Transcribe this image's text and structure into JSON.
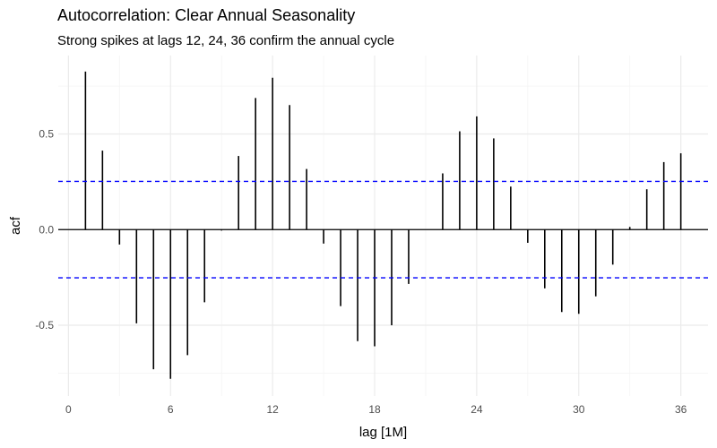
{
  "chart_data": {
    "type": "bar",
    "title": "Autocorrelation: Clear Annual Seasonality",
    "subtitle": "Strong spikes at lags 12, 24, 36 confirm the annual cycle",
    "xlabel": "lag [1M]",
    "ylabel": "acf",
    "xlim": [
      -0.6,
      37.6
    ],
    "ylim": [
      -0.87,
      0.91
    ],
    "xticks": [
      0,
      6,
      12,
      18,
      24,
      30,
      36
    ],
    "yticks": [
      -0.5,
      0.0,
      0.5
    ],
    "ytick_labels": [
      "-0.5",
      "0.0",
      "0.5"
    ],
    "grid": true,
    "confidence_bound": 0.252,
    "colors": {
      "spike": "#000000",
      "bound": "#0000ff",
      "grid": "#ebebeb"
    },
    "lags": [
      1,
      2,
      3,
      4,
      5,
      6,
      7,
      8,
      9,
      10,
      11,
      12,
      13,
      14,
      15,
      16,
      17,
      18,
      19,
      20,
      21,
      22,
      23,
      24,
      25,
      26,
      27,
      28,
      29,
      30,
      31,
      32,
      33,
      34,
      35,
      36
    ],
    "values": [
      0.826,
      0.413,
      -0.078,
      -0.49,
      -0.73,
      -0.78,
      -0.656,
      -0.38,
      -0.005,
      0.385,
      0.688,
      0.794,
      0.651,
      0.317,
      -0.073,
      -0.4,
      -0.583,
      -0.61,
      -0.5,
      -0.284,
      0.0,
      0.294,
      0.514,
      0.592,
      0.477,
      0.225,
      -0.069,
      -0.307,
      -0.431,
      -0.44,
      -0.349,
      -0.183,
      0.014,
      0.211,
      0.353,
      0.399
    ]
  }
}
